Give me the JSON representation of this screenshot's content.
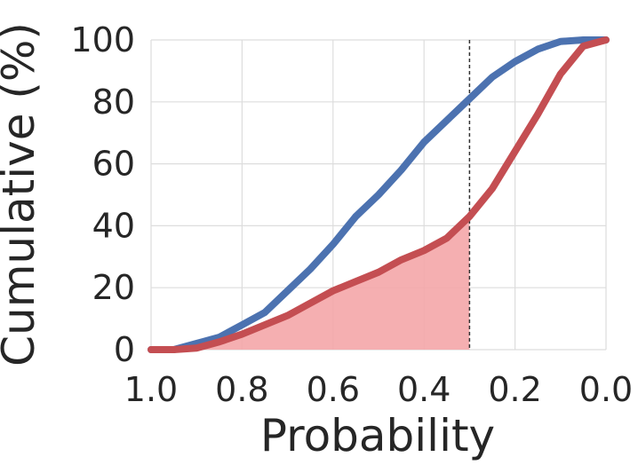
{
  "chart_data": {
    "type": "line",
    "title": "",
    "xlabel": "Probability",
    "ylabel": "Cumulative (%)",
    "xlim": [
      1.0,
      0.0
    ],
    "ylim": [
      0,
      100
    ],
    "x_reversed": true,
    "xticks": [
      "1.0",
      "0.8",
      "0.6",
      "0.4",
      "0.2",
      "0.0"
    ],
    "yticks": [
      "0",
      "20",
      "40",
      "60",
      "80",
      "100"
    ],
    "grid": true,
    "legend": "none",
    "threshold_line": {
      "x": 0.3,
      "style": "dashed",
      "color": "#333333"
    },
    "shaded_region": {
      "series": "red",
      "from_x": 1.0,
      "to_x": 0.3,
      "color": "#f4a6a8"
    },
    "series": [
      {
        "color": "#4c72b0",
        "x": [
          1.0,
          0.95,
          0.9,
          0.85,
          0.8,
          0.75,
          0.7,
          0.65,
          0.6,
          0.55,
          0.5,
          0.45,
          0.4,
          0.35,
          0.3,
          0.25,
          0.2,
          0.15,
          0.1,
          0.05,
          0.0
        ],
        "values": [
          0,
          0,
          2,
          4,
          8,
          12,
          19,
          26,
          34,
          43,
          50,
          58,
          67,
          74,
          81,
          88,
          93,
          97,
          99.5,
          100,
          100
        ]
      },
      {
        "color": "#c44e52",
        "x": [
          1.0,
          0.95,
          0.9,
          0.85,
          0.8,
          0.75,
          0.7,
          0.65,
          0.6,
          0.55,
          0.5,
          0.45,
          0.4,
          0.35,
          0.3,
          0.25,
          0.2,
          0.15,
          0.1,
          0.05,
          0.0
        ],
        "values": [
          0,
          0,
          0.5,
          2.5,
          5,
          8,
          11,
          15,
          19,
          22,
          25,
          29,
          32,
          36,
          43,
          52,
          64,
          76,
          89,
          98,
          100
        ]
      }
    ]
  }
}
